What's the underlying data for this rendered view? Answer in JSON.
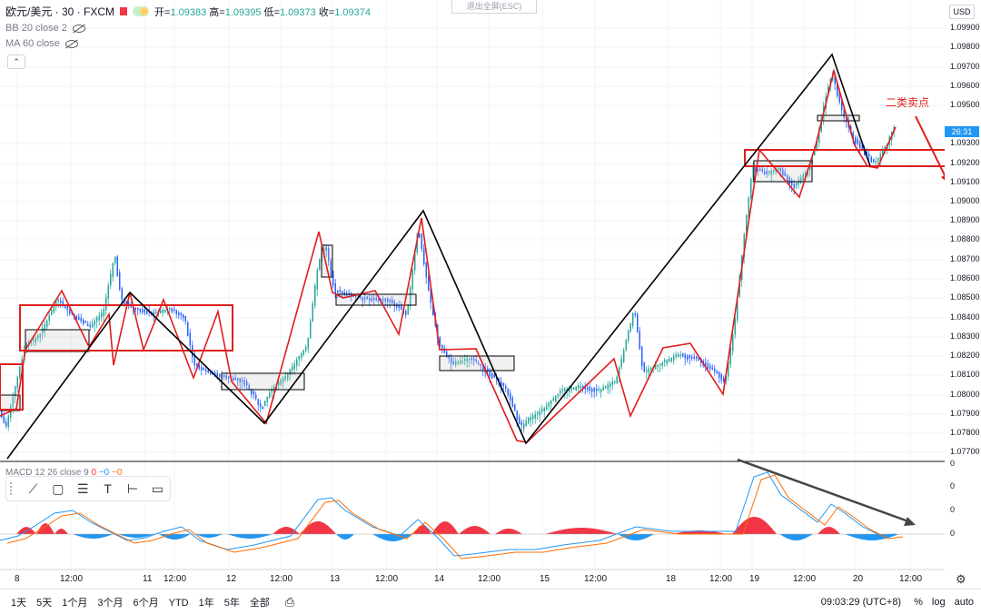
{
  "header": {
    "symbol": "欧元/美元 · 30 · FXCM",
    "ohlc": {
      "open_label": "开=",
      "open": "1.09383",
      "high_label": "高=",
      "high": "1.09395",
      "low_label": "低=",
      "low": "1.09373",
      "close_label": "收=",
      "close": "1.09374"
    },
    "indicators": [
      "BB 20 close 2",
      "MA 60 close"
    ],
    "collapse_glyph": "⌃"
  },
  "exit_fullscreen": "退出全屏(ESC)",
  "price_axis": {
    "currency": "USD",
    "labels": [
      "1.09900",
      "1.09800",
      "1.09700",
      "1.09600",
      "1.09500",
      "1.09300",
      "1.09200",
      "1.09100",
      "1.09000",
      "1.08900",
      "1.08800",
      "1.08700",
      "1.08600",
      "1.08500",
      "1.08400",
      "1.08300",
      "1.08200",
      "1.08100",
      "1.08000",
      "1.07900",
      "1.07800",
      "1.07700"
    ],
    "current_tag": "26:31"
  },
  "macd": {
    "label": "MACD 12 26 close 9",
    "v1": "0",
    "v2": "−0",
    "v3": "−0",
    "axis_labels": [
      "0",
      "0",
      "0",
      "0"
    ]
  },
  "time_axis": {
    "labels": [
      "8",
      "12:00",
      "11",
      "12:00",
      "12",
      "12:00",
      "13",
      "12:00",
      "14",
      "12:00",
      "15",
      "12:00",
      "18",
      "12:00",
      "19",
      "12:00",
      "20",
      "12:00"
    ]
  },
  "annotation": "二类卖点",
  "bottom_bar": {
    "timeframes": [
      "1天",
      "5天",
      "1个月",
      "3个月",
      "6个月",
      "YTD",
      "1年",
      "5年",
      "全部"
    ],
    "clock": "09:03:29 (UTC+8)",
    "percent": "%",
    "log": "log",
    "auto": "auto"
  },
  "colors": {
    "up": "#26a69a",
    "down": "#2962ff",
    "wave_red": "#e01e1e",
    "wave_black": "#000000",
    "macd_pos": "#f23645",
    "macd_neg": "#2196f3"
  },
  "toolbar_icons": [
    "trend-line-icon",
    "rectangle-icon",
    "parallel-channel-icon",
    "text-icon",
    "price-range-icon",
    "callout-icon"
  ]
}
